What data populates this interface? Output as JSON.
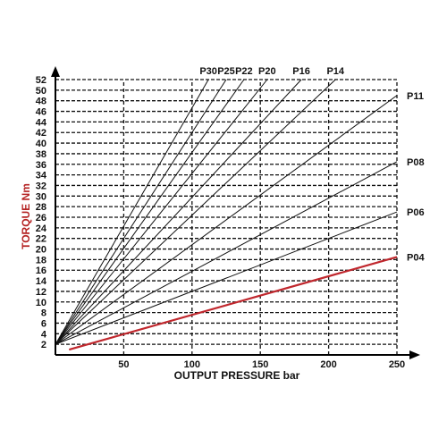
{
  "chart_data": {
    "type": "line",
    "title": "",
    "xlabel": "OUTPUT PRESSURE bar",
    "ylabel": "TORQUE Nm",
    "xlim": [
      0,
      250
    ],
    "ylim": [
      0,
      52
    ],
    "x_ticks": [
      50,
      100,
      150,
      200,
      250
    ],
    "y_ticks": [
      2,
      4,
      6,
      8,
      10,
      12,
      14,
      16,
      18,
      20,
      22,
      24,
      26,
      28,
      30,
      32,
      34,
      36,
      38,
      40,
      42,
      44,
      46,
      48,
      50,
      52
    ],
    "grid": true,
    "series": [
      {
        "name": "P30",
        "x": [
          0,
          112
        ],
        "y": [
          2,
          52
        ],
        "color": "#111111"
      },
      {
        "name": "P25",
        "x": [
          0,
          125
        ],
        "y": [
          2,
          52
        ],
        "color": "#111111"
      },
      {
        "name": "P22",
        "x": [
          0,
          138
        ],
        "y": [
          2,
          52
        ],
        "color": "#111111"
      },
      {
        "name": "P20",
        "x": [
          0,
          155
        ],
        "y": [
          2,
          52
        ],
        "color": "#111111"
      },
      {
        "name": "P16",
        "x": [
          0,
          180
        ],
        "y": [
          2,
          52
        ],
        "color": "#111111"
      },
      {
        "name": "P14",
        "x": [
          0,
          205
        ],
        "y": [
          2,
          52
        ],
        "color": "#111111"
      },
      {
        "name": "P11",
        "x": [
          0,
          250
        ],
        "y": [
          2,
          49
        ],
        "color": "#111111"
      },
      {
        "name": "P08",
        "x": [
          0,
          250
        ],
        "y": [
          2,
          36.5
        ],
        "color": "#111111"
      },
      {
        "name": "P06",
        "x": [
          0,
          250
        ],
        "y": [
          2,
          27
        ],
        "color": "#111111"
      },
      {
        "name": "P04",
        "x": [
          10,
          250
        ],
        "y": [
          1,
          18.5
        ],
        "color": "#c0272d"
      }
    ]
  }
}
